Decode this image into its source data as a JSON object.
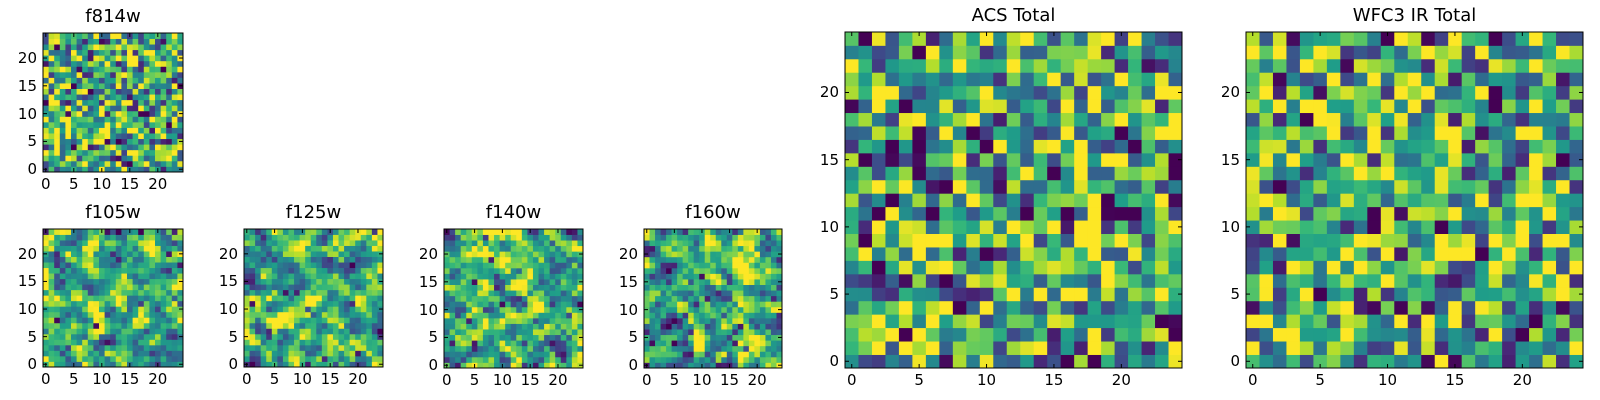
{
  "chart_data": [
    {
      "type": "heatmap",
      "title": "f814w",
      "colormap": "viridis",
      "rows": 25,
      "cols": 25,
      "xlim": [
        -0.5,
        24.5
      ],
      "ylim": [
        -0.5,
        24.5
      ],
      "xticks": [
        0,
        5,
        10,
        15,
        20
      ],
      "yticks": [
        0,
        5,
        10,
        15,
        20
      ],
      "seed": 11,
      "smooth": 0
    },
    {
      "type": "heatmap",
      "title": "f105w",
      "colormap": "viridis",
      "rows": 25,
      "cols": 25,
      "xlim": [
        -0.5,
        24.5
      ],
      "ylim": [
        -0.5,
        24.5
      ],
      "xticks": [
        0,
        5,
        10,
        15,
        20
      ],
      "yticks": [
        0,
        5,
        10,
        15,
        20
      ],
      "seed": 23,
      "smooth": 1
    },
    {
      "type": "heatmap",
      "title": "f125w",
      "colormap": "viridis",
      "rows": 25,
      "cols": 25,
      "xlim": [
        -0.5,
        24.5
      ],
      "ylim": [
        -0.5,
        24.5
      ],
      "xticks": [
        0,
        5,
        10,
        15,
        20
      ],
      "yticks": [
        0,
        5,
        10,
        15,
        20
      ],
      "seed": 37,
      "smooth": 1
    },
    {
      "type": "heatmap",
      "title": "f140w",
      "colormap": "viridis",
      "rows": 25,
      "cols": 25,
      "xlim": [
        -0.5,
        24.5
      ],
      "ylim": [
        -0.5,
        24.5
      ],
      "xticks": [
        0,
        5,
        10,
        15,
        20
      ],
      "yticks": [
        0,
        5,
        10,
        15,
        20
      ],
      "seed": 41,
      "smooth": 1
    },
    {
      "type": "heatmap",
      "title": "f160w",
      "colormap": "viridis",
      "rows": 25,
      "cols": 25,
      "xlim": [
        -0.5,
        24.5
      ],
      "ylim": [
        -0.5,
        24.5
      ],
      "xticks": [
        0,
        5,
        10,
        15,
        20
      ],
      "yticks": [
        0,
        5,
        10,
        15,
        20
      ],
      "seed": 53,
      "smooth": 1
    },
    {
      "type": "heatmap",
      "title": "ACS Total",
      "colormap": "viridis",
      "rows": 25,
      "cols": 25,
      "xlim": [
        -0.5,
        24.5
      ],
      "ylim": [
        -0.5,
        24.5
      ],
      "xticks": [
        0,
        5,
        10,
        15,
        20
      ],
      "yticks": [
        0,
        5,
        10,
        15,
        20
      ],
      "seed": 67,
      "smooth": 0
    },
    {
      "type": "heatmap",
      "title": "WFC3 IR Total",
      "colormap": "viridis",
      "rows": 25,
      "cols": 25,
      "xlim": [
        -0.5,
        24.5
      ],
      "ylim": [
        -0.5,
        24.5
      ],
      "xticks": [
        0,
        5,
        10,
        15,
        20
      ],
      "yticks": [
        0,
        5,
        10,
        15,
        20
      ],
      "seed": 79,
      "smooth": 0
    }
  ]
}
